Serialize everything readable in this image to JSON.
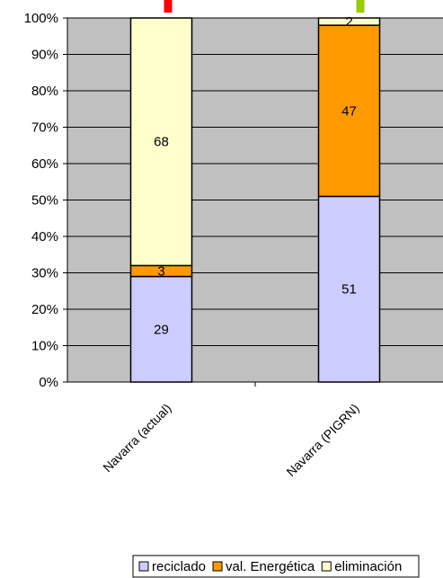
{
  "chart_data": {
    "type": "bar",
    "stacked": true,
    "percent_stacked": true,
    "categories": [
      "Navarra (actual)",
      "Navarra (PIGRN)"
    ],
    "series": [
      {
        "name": "reciclado",
        "values": [
          29,
          51
        ],
        "color": "#CCCCFF"
      },
      {
        "name": "val. Energética",
        "values": [
          3,
          47
        ],
        "color": "#FF9900"
      },
      {
        "name": "eliminación",
        "values": [
          68,
          2
        ],
        "color": "#FFFFCC"
      }
    ],
    "ylim": [
      0,
      100
    ],
    "yticks": [
      "0%",
      "10%",
      "20%",
      "30%",
      "40%",
      "50%",
      "60%",
      "70%",
      "80%",
      "90%",
      "100%"
    ],
    "grid": true,
    "plot_background": "#C0C0C0",
    "legend_position": "bottom",
    "marker_colors": [
      "#FF0000",
      "#99CC00"
    ]
  }
}
